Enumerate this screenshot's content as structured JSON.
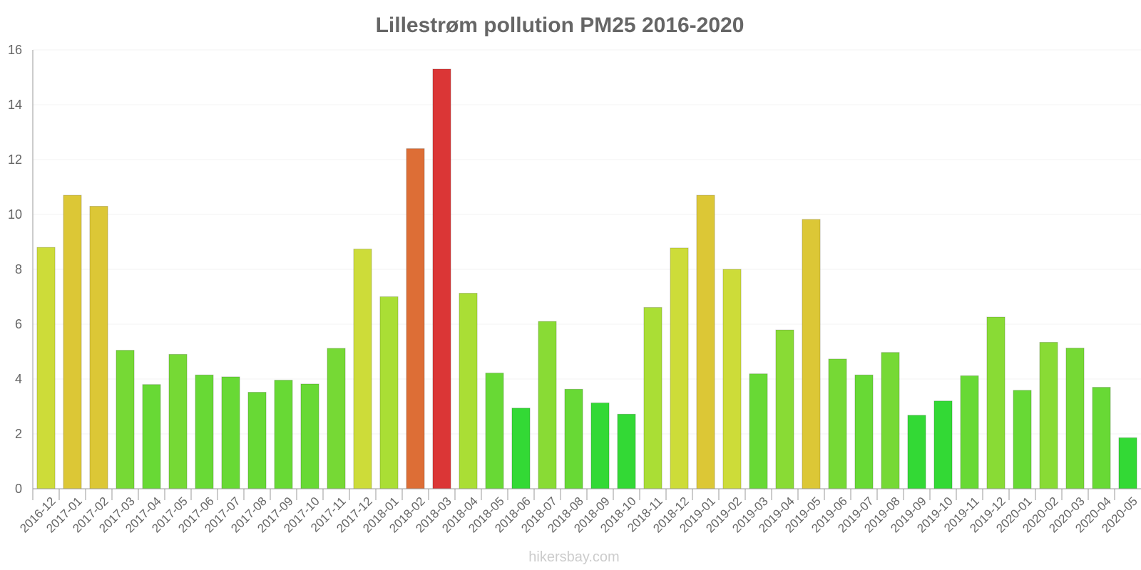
{
  "chart_data": {
    "type": "bar",
    "title": "Lillestrøm pollution PM25 2016-2020",
    "xlabel": "",
    "ylabel": "",
    "ylim": [
      0,
      16
    ],
    "yticks": [
      "0",
      "2",
      "4",
      "6",
      "8",
      "10",
      "12",
      "14",
      "16"
    ],
    "grid": true,
    "categories": [
      "2016-12",
      "2017-01",
      "2017-02",
      "2017-03",
      "2017-04",
      "2017-05",
      "2017-06",
      "2017-07",
      "2017-08",
      "2017-09",
      "2017-10",
      "2017-11",
      "2017-12",
      "2018-01",
      "2018-02",
      "2018-03",
      "2018-04",
      "2018-05",
      "2018-06",
      "2018-07",
      "2018-08",
      "2018-09",
      "2018-10",
      "2018-11",
      "2018-12",
      "2019-01",
      "2019-02",
      "2019-03",
      "2019-04",
      "2019-05",
      "2019-06",
      "2019-07",
      "2019-08",
      "2019-09",
      "2019-10",
      "2019-11",
      "2019-12",
      "2020-01",
      "2020-02",
      "2020-03",
      "2020-04",
      "2020-05"
    ],
    "values": [
      8.8,
      10.7,
      10.3,
      5.05,
      3.8,
      4.9,
      4.15,
      4.08,
      3.52,
      3.96,
      3.82,
      5.12,
      8.74,
      7.0,
      12.4,
      15.3,
      7.13,
      4.22,
      2.94,
      6.1,
      3.63,
      3.13,
      2.72,
      6.61,
      8.78,
      10.7,
      8.0,
      4.19,
      5.79,
      9.82,
      4.73,
      4.15,
      4.97,
      2.68,
      3.2,
      4.12,
      6.26,
      3.59,
      5.34,
      5.13,
      3.7,
      1.86
    ],
    "colors": [
      "#cddc39",
      "#dcc736",
      "#dcc736",
      "#76d935",
      "#68d935",
      "#76d935",
      "#68d935",
      "#68d935",
      "#68d935",
      "#68d935",
      "#68d935",
      "#76d935",
      "#cddc39",
      "#aade35",
      "#dd6e36",
      "#db3636",
      "#aade35",
      "#68d935",
      "#33d935",
      "#89db35",
      "#68d935",
      "#33d935",
      "#33d935",
      "#aade35",
      "#cddc39",
      "#dcc736",
      "#cddc39",
      "#68d935",
      "#89db35",
      "#dcc736",
      "#76d935",
      "#68d935",
      "#76d935",
      "#33d935",
      "#33d935",
      "#68d935",
      "#89db35",
      "#68d935",
      "#89db35",
      "#76d935",
      "#68d935",
      "#33d935"
    ]
  },
  "credit": "hikersbay.com"
}
